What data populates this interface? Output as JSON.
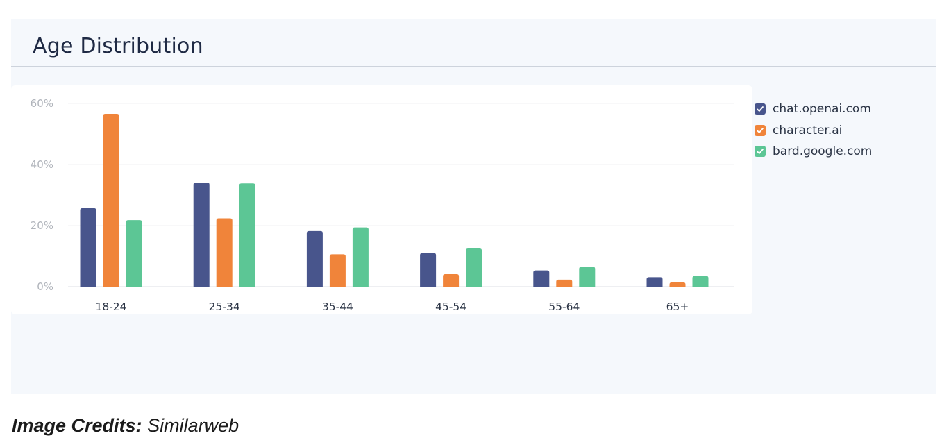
{
  "panel": {
    "title": "Age Distribution"
  },
  "legend": {
    "items": [
      {
        "label": "chat.openai.com",
        "color": "#48558c",
        "icon": "checkbox-checked-icon"
      },
      {
        "label": "character.ai",
        "color": "#f0843a",
        "icon": "checkbox-checked-icon"
      },
      {
        "label": "bard.google.com",
        "color": "#5cc695",
        "icon": "checkbox-checked-icon"
      }
    ]
  },
  "credits": {
    "prefix": "Image Credits:",
    "source": "Similarweb"
  },
  "chart_data": {
    "type": "bar",
    "title": "Age Distribution",
    "xlabel": "",
    "ylabel": "",
    "categories": [
      "18-24",
      "25-34",
      "35-44",
      "45-54",
      "55-64",
      "65+"
    ],
    "ylim": [
      0,
      60
    ],
    "yticks": [
      "0%",
      "20%",
      "40%",
      "60%"
    ],
    "ytick_values": [
      0,
      20,
      40,
      60
    ],
    "grid": true,
    "legend_position": "right",
    "series": [
      {
        "name": "chat.openai.com",
        "color": "#48558c",
        "values": [
          25.7,
          34.1,
          18.2,
          11.0,
          5.3,
          3.1
        ]
      },
      {
        "name": "character.ai",
        "color": "#f0843a",
        "values": [
          56.6,
          22.4,
          10.6,
          4.1,
          2.3,
          1.4
        ]
      },
      {
        "name": "bard.google.com",
        "color": "#5cc695",
        "values": [
          21.8,
          33.8,
          19.4,
          12.5,
          6.5,
          3.5
        ]
      }
    ]
  }
}
